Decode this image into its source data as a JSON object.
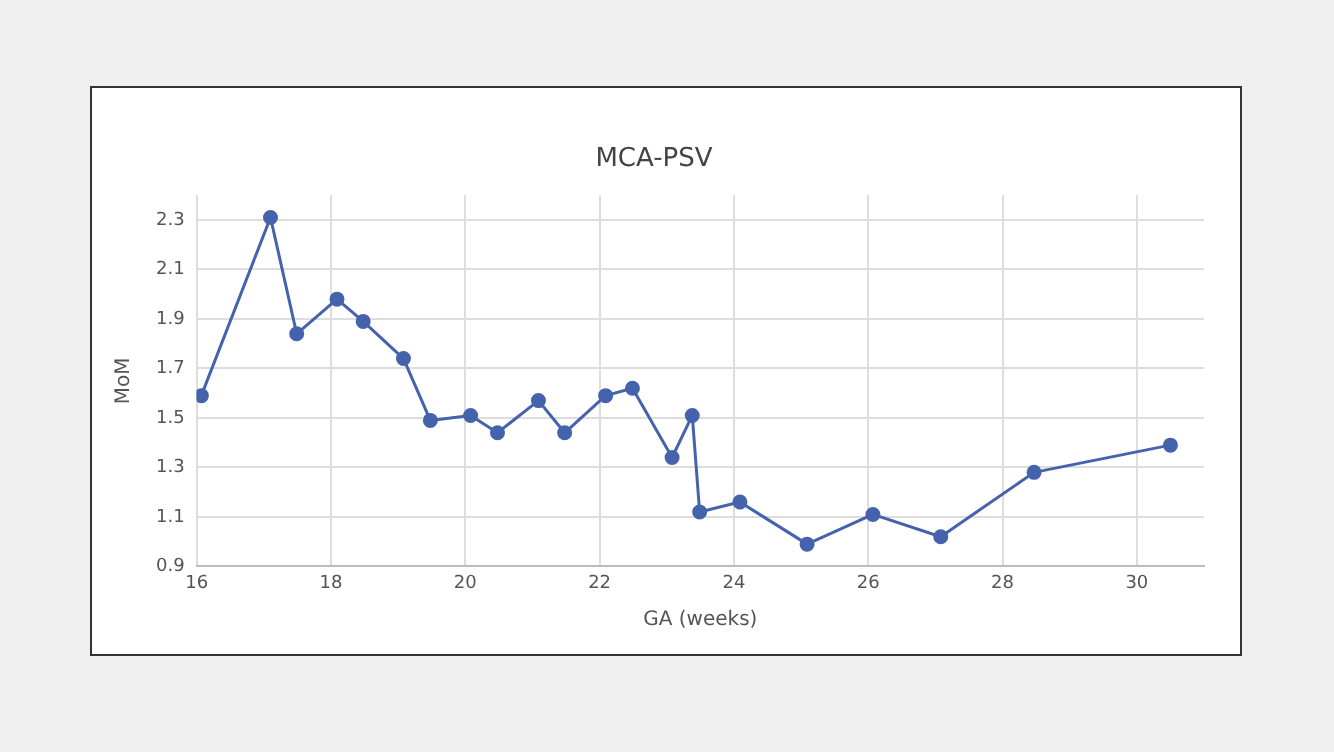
{
  "chart_data": {
    "type": "line",
    "title": "MCA-PSV",
    "xlabel": "GA (weeks)",
    "ylabel": "MoM",
    "xlim": [
      16,
      31
    ],
    "xticks": [
      16,
      18,
      20,
      22,
      24,
      26,
      28,
      30
    ],
    "ylim": [
      0.9,
      2.4
    ],
    "yticks": [
      0.9,
      1.1,
      1.3,
      1.5,
      1.7,
      1.9,
      2.1,
      2.3
    ],
    "grid": true,
    "marker": "circle",
    "legend": false,
    "series": [
      {
        "color": "#4563ac",
        "x": [
          16.07,
          17.1,
          17.49,
          18.09,
          18.48,
          19.08,
          19.48,
          20.08,
          20.48,
          21.09,
          21.48,
          22.09,
          22.49,
          23.08,
          23.38,
          23.49,
          24.09,
          25.09,
          26.07,
          27.08,
          28.47,
          30.5
        ],
        "values": [
          1.59,
          2.31,
          1.84,
          1.98,
          1.89,
          1.74,
          1.49,
          1.51,
          1.44,
          1.57,
          1.44,
          1.59,
          1.62,
          1.34,
          1.51,
          1.12,
          1.16,
          0.99,
          1.11,
          1.02,
          1.28,
          1.39
        ]
      }
    ]
  }
}
